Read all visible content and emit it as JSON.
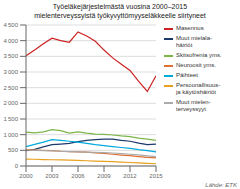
{
  "chart_data": {
    "type": "line",
    "title": "Työeläkejärjestelmästä vuosina 2000–2015\nmielenterveyssyistä työkyvyttömyyseläkkeelle siirtyneet",
    "annotations": [
      "Lähde: ETK"
    ],
    "x": [
      2000,
      2001,
      2002,
      2003,
      2004,
      2005,
      2006,
      2007,
      2008,
      2009,
      2010,
      2011,
      2012,
      2013,
      2014,
      2015
    ],
    "series": [
      {
        "name": "Masennus",
        "color": "#cc2222",
        "values": [
          3520,
          3700,
          3900,
          4080,
          4000,
          3950,
          4280,
          4150,
          3980,
          3700,
          3450,
          3250,
          3050,
          2700,
          2380,
          2880
        ]
      },
      {
        "name": "Muut mielala-\nhäiriöt",
        "color": "#1a3a6b",
        "values": [
          490,
          530,
          610,
          680,
          700,
          720,
          780,
          820,
          840,
          860,
          860,
          820,
          790,
          730,
          680,
          700
        ]
      },
      {
        "name": "Skitsofrenia yms.",
        "color": "#7ab648",
        "values": [
          1080,
          1060,
          1090,
          1160,
          1130,
          1050,
          1090,
          1050,
          1020,
          1010,
          990,
          960,
          940,
          890,
          860,
          820
        ]
      },
      {
        "name": "Neuroosit yms.",
        "color": "#e07030",
        "values": [
          520,
          510,
          500,
          490,
          470,
          460,
          450,
          440,
          420,
          400,
          375,
          350,
          330,
          300,
          275,
          260
        ]
      },
      {
        "name": "Päihteet",
        "color": "#00aadd",
        "values": [
          620,
          690,
          760,
          840,
          820,
          790,
          760,
          720,
          680,
          650,
          620,
          590,
          560,
          520,
          490,
          450
        ]
      },
      {
        "name": "Persoonallisuus-\nja käytöshäiriöt",
        "color": "#e8a020",
        "values": [
          220,
          215,
          205,
          200,
          195,
          185,
          178,
          168,
          158,
          148,
          138,
          122,
          112,
          98,
          82,
          72
        ]
      },
      {
        "name": "Muut mielen-\nterveyssyyt",
        "color": "#aaaaaa",
        "values": [
          510,
          500,
          490,
          480,
          470,
          460,
          450,
          445,
          435,
          425,
          415,
          398,
          375,
          355,
          325,
          298
        ]
      }
    ],
    "xlim": [
      2000,
      2015
    ],
    "xticks": [
      2000,
      2003,
      2006,
      2009,
      2012,
      2015
    ],
    "ylim": [
      0,
      4500
    ],
    "yticks": [
      0,
      500,
      {
        "value": 1000,
        "label": "1 000"
      },
      {
        "value": 1500,
        "label": "1 500"
      },
      {
        "value": 2000,
        "label": "2 000"
      },
      {
        "value": 2500,
        "label": "2 500"
      },
      {
        "value": 3000,
        "label": "3 000"
      },
      {
        "value": 3500,
        "label": "3 500"
      },
      {
        "value": 4000,
        "label": "4 000"
      },
      {
        "value": 4500,
        "label": "4 500"
      }
    ],
    "grid": true,
    "legend": "right"
  }
}
